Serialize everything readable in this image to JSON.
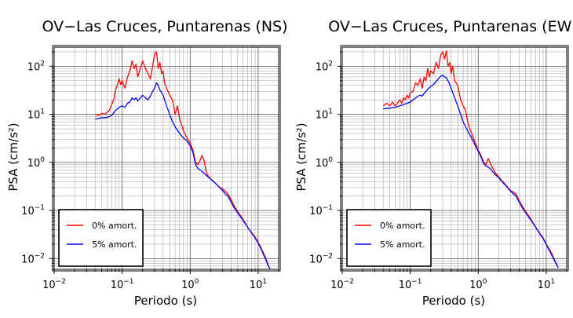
{
  "chart_data": [
    {
      "type": "line",
      "title": "OV−Las Cruces, Puntarenas (NS)",
      "xlabel": "Periodo (s)",
      "ylabel": "PSA (cm/s²)",
      "x_scale": "log",
      "y_scale": "log",
      "xlim": [
        0.01,
        20
      ],
      "ylim": [
        0.006,
        250
      ],
      "grid": true,
      "legend_position": "bottom-left",
      "x_ticks": [
        {
          "value": 0.01,
          "base": "10",
          "exp": "−2"
        },
        {
          "value": 0.1,
          "base": "10",
          "exp": "−1"
        },
        {
          "value": 1,
          "base": "10",
          "exp": "0"
        },
        {
          "value": 10,
          "base": "10",
          "exp": "1"
        }
      ],
      "y_ticks": [
        {
          "value": 0.01,
          "base": "10",
          "exp": "−2"
        },
        {
          "value": 0.1,
          "base": "10",
          "exp": "−1"
        },
        {
          "value": 1,
          "base": "10",
          "exp": "0"
        },
        {
          "value": 10,
          "base": "10",
          "exp": "1"
        },
        {
          "value": 100,
          "base": "10",
          "exp": "2"
        }
      ],
      "series": [
        {
          "name": "0% amort.",
          "color": "#ff0000",
          "points": [
            [
              0.04,
              10
            ],
            [
              0.045,
              9.5
            ],
            [
              0.05,
              10.5
            ],
            [
              0.055,
              10
            ],
            [
              0.06,
              11
            ],
            [
              0.065,
              12
            ],
            [
              0.07,
              16
            ],
            [
              0.075,
              20
            ],
            [
              0.08,
              32
            ],
            [
              0.085,
              40
            ],
            [
              0.09,
              55
            ],
            [
              0.095,
              42
            ],
            [
              0.1,
              50
            ],
            [
              0.11,
              35
            ],
            [
              0.12,
              60
            ],
            [
              0.13,
              80
            ],
            [
              0.14,
              130
            ],
            [
              0.15,
              90
            ],
            [
              0.16,
              110
            ],
            [
              0.17,
              60
            ],
            [
              0.18,
              80
            ],
            [
              0.2,
              130
            ],
            [
              0.22,
              90
            ],
            [
              0.24,
              70
            ],
            [
              0.26,
              55
            ],
            [
              0.28,
              100
            ],
            [
              0.3,
              180
            ],
            [
              0.32,
              200
            ],
            [
              0.34,
              90
            ],
            [
              0.36,
              120
            ],
            [
              0.38,
              70
            ],
            [
              0.4,
              80
            ],
            [
              0.42,
              45
            ],
            [
              0.45,
              35
            ],
            [
              0.5,
              25
            ],
            [
              0.55,
              20
            ],
            [
              0.6,
              10
            ],
            [
              0.65,
              15
            ],
            [
              0.7,
              8
            ],
            [
              0.75,
              6
            ],
            [
              0.8,
              4.5
            ],
            [
              0.9,
              3.2
            ],
            [
              1.0,
              2.5
            ],
            [
              1.1,
              1.8
            ],
            [
              1.2,
              1.0
            ],
            [
              1.3,
              0.9
            ],
            [
              1.4,
              1.1
            ],
            [
              1.5,
              1.4
            ],
            [
              1.6,
              1.1
            ],
            [
              1.7,
              0.7
            ],
            [
              1.8,
              0.55
            ],
            [
              2.0,
              0.45
            ],
            [
              2.3,
              0.38
            ],
            [
              2.6,
              0.32
            ],
            [
              3.0,
              0.28
            ],
            [
              3.3,
              0.25
            ],
            [
              3.6,
              0.22
            ],
            [
              4.0,
              0.17
            ],
            [
              4.5,
              0.12
            ],
            [
              5.0,
              0.095
            ],
            [
              6.0,
              0.065
            ],
            [
              7.0,
              0.045
            ],
            [
              8.0,
              0.035
            ],
            [
              9.0,
              0.028
            ],
            [
              10.0,
              0.022
            ],
            [
              11.0,
              0.017
            ],
            [
              12.0,
              0.013
            ],
            [
              13.0,
              0.01
            ],
            [
              14.0,
              0.0075
            ],
            [
              15.0,
              0.006
            ]
          ]
        },
        {
          "name": "5% amort.",
          "color": "#0000ff",
          "points": [
            [
              0.04,
              8
            ],
            [
              0.045,
              8.2
            ],
            [
              0.05,
              8.5
            ],
            [
              0.06,
              8.6
            ],
            [
              0.07,
              9.5
            ],
            [
              0.08,
              12
            ],
            [
              0.09,
              14
            ],
            [
              0.1,
              15
            ],
            [
              0.11,
              14
            ],
            [
              0.12,
              17
            ],
            [
              0.13,
              18
            ],
            [
              0.14,
              22
            ],
            [
              0.15,
              20
            ],
            [
              0.16,
              22
            ],
            [
              0.17,
              19
            ],
            [
              0.18,
              21
            ],
            [
              0.2,
              25
            ],
            [
              0.22,
              22
            ],
            [
              0.24,
              20
            ],
            [
              0.26,
              24
            ],
            [
              0.28,
              30
            ],
            [
              0.3,
              35
            ],
            [
              0.32,
              45
            ],
            [
              0.34,
              40
            ],
            [
              0.36,
              32
            ],
            [
              0.4,
              25
            ],
            [
              0.45,
              15
            ],
            [
              0.5,
              10
            ],
            [
              0.55,
              7
            ],
            [
              0.6,
              5.5
            ],
            [
              0.7,
              4
            ],
            [
              0.8,
              3.2
            ],
            [
              0.9,
              2.8
            ],
            [
              1.0,
              2.2
            ],
            [
              1.1,
              1.6
            ],
            [
              1.2,
              0.9
            ],
            [
              1.3,
              0.75
            ],
            [
              1.5,
              0.65
            ],
            [
              1.7,
              0.55
            ],
            [
              2.0,
              0.45
            ],
            [
              2.3,
              0.38
            ],
            [
              2.6,
              0.32
            ],
            [
              3.0,
              0.26
            ],
            [
              3.3,
              0.22
            ],
            [
              3.6,
              0.2
            ],
            [
              4.0,
              0.15
            ],
            [
              4.5,
              0.11
            ],
            [
              5.0,
              0.09
            ],
            [
              6.0,
              0.062
            ],
            [
              7.0,
              0.045
            ],
            [
              8.0,
              0.034
            ],
            [
              9.0,
              0.027
            ],
            [
              10.0,
              0.021
            ],
            [
              11.0,
              0.016
            ],
            [
              12.0,
              0.012
            ],
            [
              13.0,
              0.0095
            ],
            [
              14.0,
              0.0072
            ],
            [
              15.0,
              0.006
            ]
          ]
        }
      ]
    },
    {
      "type": "line",
      "title": "OV−Las Cruces, Puntarenas (EW)",
      "xlabel": "Periodo (s)",
      "ylabel": "PSA (cm/s²)",
      "x_scale": "log",
      "y_scale": "log",
      "xlim": [
        0.01,
        20
      ],
      "ylim": [
        0.006,
        250
      ],
      "grid": true,
      "legend_position": "bottom-left",
      "x_ticks": [
        {
          "value": 0.01,
          "base": "10",
          "exp": "−2"
        },
        {
          "value": 0.1,
          "base": "10",
          "exp": "−1"
        },
        {
          "value": 1,
          "base": "10",
          "exp": "0"
        },
        {
          "value": 10,
          "base": "10",
          "exp": "1"
        }
      ],
      "y_ticks": [
        {
          "value": 0.01,
          "base": "10",
          "exp": "−2"
        },
        {
          "value": 0.1,
          "base": "10",
          "exp": "−1"
        },
        {
          "value": 1,
          "base": "10",
          "exp": "0"
        },
        {
          "value": 10,
          "base": "10",
          "exp": "1"
        },
        {
          "value": 100,
          "base": "10",
          "exp": "2"
        }
      ],
      "series": [
        {
          "name": "0% amort.",
          "color": "#ff0000",
          "points": [
            [
              0.04,
              15
            ],
            [
              0.045,
              17
            ],
            [
              0.05,
              15
            ],
            [
              0.055,
              18
            ],
            [
              0.06,
              15
            ],
            [
              0.065,
              17
            ],
            [
              0.07,
              20
            ],
            [
              0.075,
              17
            ],
            [
              0.08,
              22
            ],
            [
              0.085,
              20
            ],
            [
              0.09,
              25
            ],
            [
              0.095,
              22
            ],
            [
              0.1,
              28
            ],
            [
              0.11,
              30
            ],
            [
              0.12,
              45
            ],
            [
              0.13,
              40
            ],
            [
              0.14,
              55
            ],
            [
              0.15,
              35
            ],
            [
              0.16,
              60
            ],
            [
              0.17,
              50
            ],
            [
              0.18,
              90
            ],
            [
              0.19,
              60
            ],
            [
              0.2,
              80
            ],
            [
              0.22,
              70
            ],
            [
              0.24,
              120
            ],
            [
              0.26,
              90
            ],
            [
              0.28,
              170
            ],
            [
              0.3,
              200
            ],
            [
              0.32,
              140
            ],
            [
              0.34,
              210
            ],
            [
              0.36,
              100
            ],
            [
              0.38,
              120
            ],
            [
              0.4,
              70
            ],
            [
              0.42,
              100
            ],
            [
              0.45,
              50
            ],
            [
              0.5,
              40
            ],
            [
              0.55,
              20
            ],
            [
              0.6,
              15
            ],
            [
              0.65,
              12
            ],
            [
              0.7,
              7
            ],
            [
              0.75,
              5
            ],
            [
              0.8,
              4
            ],
            [
              0.9,
              2.6
            ],
            [
              1.0,
              1.8
            ],
            [
              1.1,
              1.4
            ],
            [
              1.2,
              1.0
            ],
            [
              1.3,
              0.9
            ],
            [
              1.4,
              1.2
            ],
            [
              1.5,
              1.0
            ],
            [
              1.6,
              0.8
            ],
            [
              1.8,
              0.6
            ],
            [
              2.0,
              0.5
            ],
            [
              2.3,
              0.4
            ],
            [
              2.6,
              0.33
            ],
            [
              3.0,
              0.26
            ],
            [
              3.3,
              0.24
            ],
            [
              3.6,
              0.22
            ],
            [
              4.0,
              0.16
            ],
            [
              4.5,
              0.12
            ],
            [
              5.0,
              0.095
            ],
            [
              6.0,
              0.065
            ],
            [
              7.0,
              0.045
            ],
            [
              8.0,
              0.034
            ],
            [
              9.0,
              0.027
            ],
            [
              10.0,
              0.02
            ],
            [
              11.0,
              0.016
            ],
            [
              12.0,
              0.013
            ],
            [
              13.0,
              0.01
            ],
            [
              14.0,
              0.008
            ],
            [
              15.0,
              0.0065
            ]
          ]
        },
        {
          "name": "5% amort.",
          "color": "#0000ff",
          "points": [
            [
              0.04,
              13
            ],
            [
              0.05,
              13.5
            ],
            [
              0.06,
              14
            ],
            [
              0.07,
              15
            ],
            [
              0.08,
              16
            ],
            [
              0.09,
              17
            ],
            [
              0.1,
              18
            ],
            [
              0.11,
              20
            ],
            [
              0.12,
              22
            ],
            [
              0.13,
              24
            ],
            [
              0.14,
              25
            ],
            [
              0.15,
              24
            ],
            [
              0.16,
              27
            ],
            [
              0.17,
              30
            ],
            [
              0.18,
              33
            ],
            [
              0.2,
              38
            ],
            [
              0.22,
              42
            ],
            [
              0.24,
              48
            ],
            [
              0.26,
              55
            ],
            [
              0.28,
              62
            ],
            [
              0.3,
              65
            ],
            [
              0.32,
              60
            ],
            [
              0.34,
              58
            ],
            [
              0.36,
              50
            ],
            [
              0.4,
              35
            ],
            [
              0.45,
              22
            ],
            [
              0.5,
              15
            ],
            [
              0.55,
              10
            ],
            [
              0.6,
              7
            ],
            [
              0.7,
              4.5
            ],
            [
              0.8,
              3.2
            ],
            [
              0.9,
              2.3
            ],
            [
              1.0,
              1.7
            ],
            [
              1.1,
              1.3
            ],
            [
              1.2,
              0.95
            ],
            [
              1.3,
              0.85
            ],
            [
              1.5,
              0.75
            ],
            [
              1.7,
              0.6
            ],
            [
              2.0,
              0.48
            ],
            [
              2.3,
              0.38
            ],
            [
              2.6,
              0.32
            ],
            [
              3.0,
              0.25
            ],
            [
              3.3,
              0.22
            ],
            [
              3.6,
              0.2
            ],
            [
              4.0,
              0.15
            ],
            [
              4.5,
              0.11
            ],
            [
              5.0,
              0.09
            ],
            [
              6.0,
              0.062
            ],
            [
              7.0,
              0.045
            ],
            [
              8.0,
              0.033
            ],
            [
              9.0,
              0.026
            ],
            [
              10.0,
              0.02
            ],
            [
              11.0,
              0.015
            ],
            [
              12.0,
              0.012
            ],
            [
              13.0,
              0.0095
            ],
            [
              14.0,
              0.0078
            ],
            [
              15.0,
              0.0065
            ]
          ]
        }
      ]
    }
  ]
}
